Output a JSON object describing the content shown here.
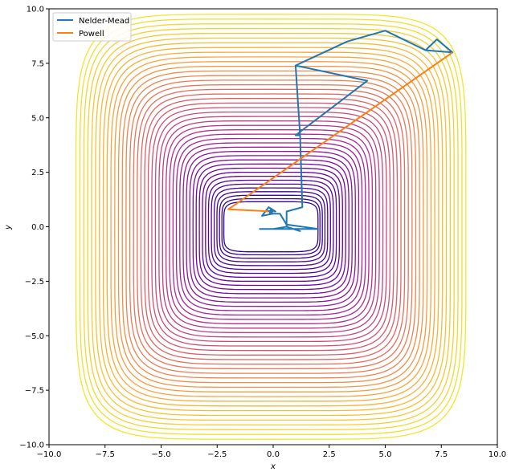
{
  "chart_data": {
    "type": "line",
    "title": "",
    "xlabel": "x",
    "ylabel": "y",
    "xlim": [
      -10,
      10
    ],
    "ylim": [
      -10,
      10
    ],
    "xticks": [
      -10.0,
      -7.5,
      -5.0,
      -2.5,
      0.0,
      2.5,
      5.0,
      7.5,
      10.0
    ],
    "yticks": [
      -10.0,
      -7.5,
      -5.0,
      -2.5,
      0.0,
      2.5,
      5.0,
      7.5,
      10.0
    ],
    "xtick_labels": [
      "−10.0",
      "−7.5",
      "−5.0",
      "−2.5",
      "0.0",
      "2.5",
      "5.0",
      "7.5",
      "10.0"
    ],
    "ytick_labels": [
      "−10.0",
      "−7.5",
      "−5.0",
      "−2.5",
      "0.0",
      "2.5",
      "5.0",
      "7.5",
      "10.0"
    ],
    "grid": false,
    "legend_position": "top-left",
    "background_contours": {
      "style": "rounded-square contour lines of the objective, purple at center fading to yellow outward",
      "colormap": [
        "#2c0594",
        "#6a00a8",
        "#b12a90",
        "#e16462",
        "#fca636",
        "#f0e62d"
      ]
    },
    "series": [
      {
        "name": "Nelder-Mead",
        "color": "#1f77b4",
        "x": [
          1.2,
          1.0,
          4.2,
          1.0,
          3.3,
          5.0,
          6.8,
          7.3,
          8.0,
          6.8,
          5.0,
          3.3,
          1.0,
          1.2,
          1.3,
          0.6,
          0.6,
          1.2,
          0.6,
          0.0,
          -0.3,
          -0.6,
          0.3,
          1.0,
          2.0,
          0.6,
          0.3,
          0.0,
          -0.5,
          -0.2,
          0.1,
          -0.1,
          0.0
        ],
        "y": [
          4.2,
          4.2,
          6.7,
          7.4,
          8.5,
          9.0,
          8.1,
          8.6,
          8.0,
          8.1,
          9.0,
          8.5,
          7.4,
          4.2,
          0.9,
          0.7,
          0.0,
          -0.2,
          0.0,
          -0.1,
          -0.1,
          -0.1,
          -0.1,
          -0.1,
          -0.1,
          0.1,
          0.6,
          0.6,
          0.5,
          0.9,
          0.7,
          0.7,
          0.7
        ]
      },
      {
        "name": "Powell",
        "color": "#ff7f0e",
        "x": [
          8.0,
          -2.0,
          0.0,
          -0.3,
          -0.1
        ],
        "y": [
          8.0,
          0.8,
          0.7,
          0.7,
          0.7
        ]
      }
    ],
    "endpoint_marker": {
      "x": -0.1,
      "y": 0.7,
      "color": "#1f77b4"
    }
  }
}
